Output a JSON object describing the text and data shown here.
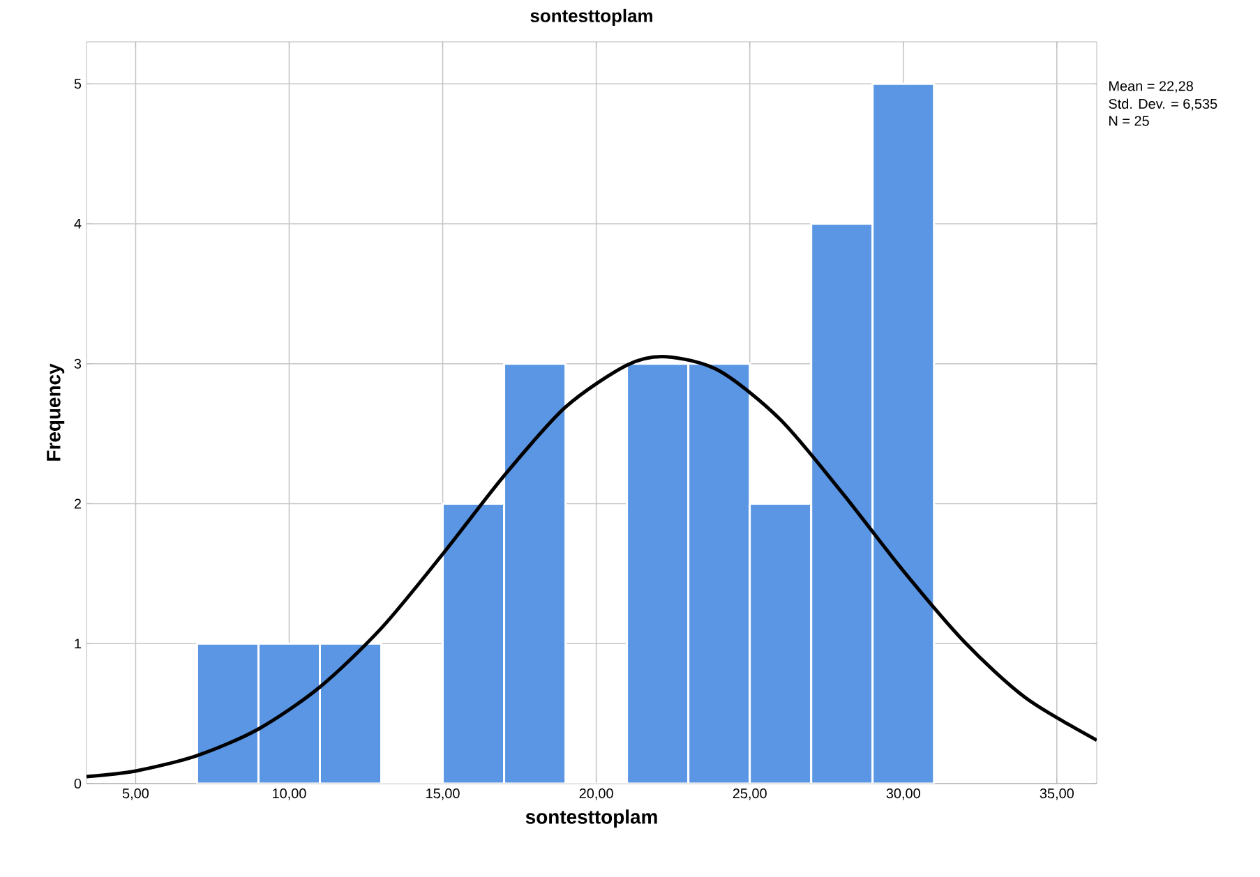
{
  "chart_data": {
    "type": "histogram",
    "title": "sontesttoplam",
    "xlabel": "sontesttoplam",
    "ylabel": "Frequency",
    "annotations": [
      "Mean = 22,28",
      "Std. Dev. = 6,535",
      "N = 25"
    ],
    "series": [
      {
        "color": "#5a96e3",
        "bins": [
          7,
          9,
          11,
          13,
          15,
          17,
          19,
          21,
          23,
          25,
          27,
          29,
          31
        ],
        "values": [
          1,
          1,
          1,
          0,
          2,
          3,
          0,
          3,
          3,
          2,
          4,
          5
        ]
      },
      {
        "type": "line",
        "color": "#000000",
        "x": [
          3.4,
          5,
          7,
          9,
          11,
          13,
          15,
          17,
          19,
          21,
          22.28,
          24,
          26,
          28,
          30,
          32,
          34,
          36.3
        ],
        "values": [
          0.05,
          0.09,
          0.2,
          0.39,
          0.69,
          1.11,
          1.64,
          2.2,
          2.69,
          2.99,
          3.05,
          2.95,
          2.6,
          2.08,
          1.52,
          1.01,
          0.61,
          0.31
        ]
      }
    ],
    "xlim": [
      3.4,
      36.3
    ],
    "ylim": [
      0,
      5.3
    ],
    "xticks": [
      {
        "value": 5,
        "label": "5,00"
      },
      {
        "value": 10,
        "label": "10,00"
      },
      {
        "value": 15,
        "label": "15,00"
      },
      {
        "value": 20,
        "label": "20,00"
      },
      {
        "value": 25,
        "label": "25,00"
      },
      {
        "value": 30,
        "label": "30,00"
      },
      {
        "value": 35,
        "label": "35,00"
      }
    ],
    "yticks": [
      0,
      1,
      2,
      3,
      4,
      5
    ],
    "grid": true,
    "line_style": "solid"
  }
}
